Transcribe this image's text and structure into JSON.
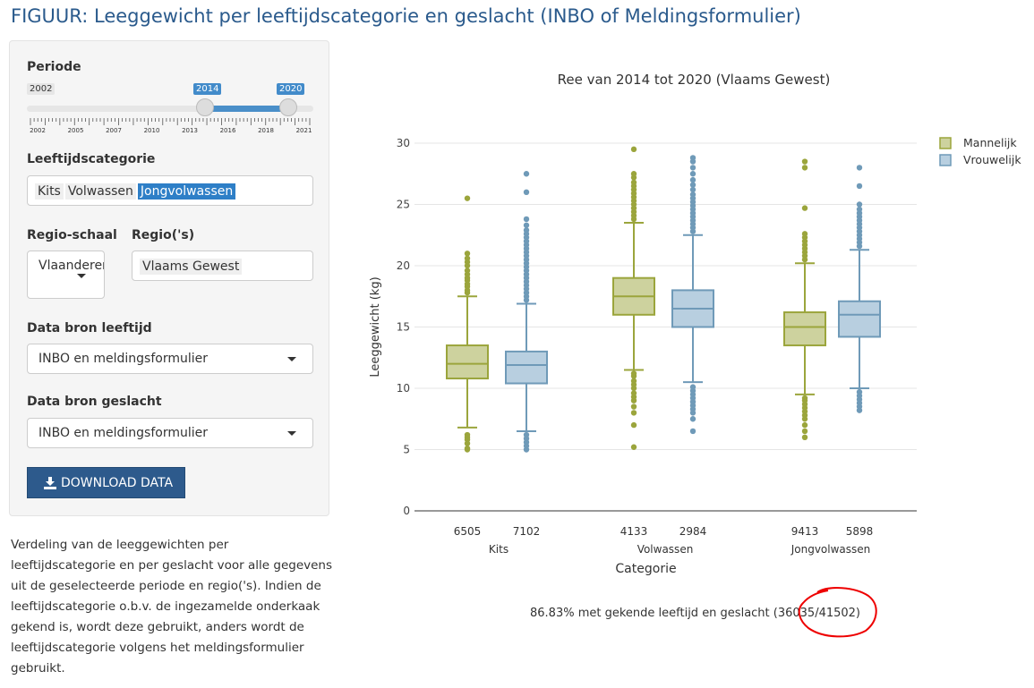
{
  "page": {
    "title": "FIGUUR: Leeggewicht per leeftijdscategorie en geslacht (INBO of Meldingsformulier)"
  },
  "sidebar": {
    "periode": {
      "label": "Periode",
      "min_label": "2002",
      "from": "2014",
      "to": "2020",
      "ticks": [
        "2002",
        "2005",
        "2007",
        "2010",
        "2013",
        "2016",
        "2018",
        "2021"
      ]
    },
    "leeftijd": {
      "label": "Leeftijdscategorie",
      "tags": [
        "Kits",
        "Volwassen",
        "Jongvolwassen"
      ],
      "selected": "Jongvolwassen"
    },
    "regio_schaal": {
      "label": "Regio-schaal",
      "value": "Vlaanderen"
    },
    "regios": {
      "label": "Regio('s)",
      "value": "Vlaams Gewest"
    },
    "bron_leeftijd": {
      "label": "Data bron leeftijd",
      "value": "INBO en meldingsformulier"
    },
    "bron_geslacht": {
      "label": "Data bron geslacht",
      "value": "INBO en meldingsformulier"
    },
    "download_label": "DOWNLOAD DATA"
  },
  "description": "Verdeling van de leeggewichten per leeftijdscategorie en per geslacht voor alle gegevens uit de geselecteerde periode en regio('s). Indien de leeftijdscategorie o.b.v. de ingezamelde onderkaak gekend is, wordt deze gebruikt, anders wordt de leeftijdscategorie volgens het meldingsformulier gebruikt.",
  "footnote": "86.83% met gekende leeftijd en geslacht (36035/41502)",
  "colors": {
    "male": "#9ba53c",
    "male_fill": "#cdd29e",
    "female": "#6f9ab8",
    "female_fill": "#b8cfe0",
    "accent": "#2a5a8c"
  },
  "chart_data": {
    "type": "box",
    "title": "Ree van 2014 tot 2020 (Vlaams Gewest)",
    "xlabel": "Categorie",
    "ylabel": "Leeggewicht (kg)",
    "ylim": [
      0,
      30
    ],
    "yticks": [
      0,
      5,
      10,
      15,
      20,
      25,
      30
    ],
    "categories": [
      "Kits",
      "Volwassen",
      "Jongvolwassen"
    ],
    "legend": {
      "position": "top-right"
    },
    "series": [
      {
        "name": "Mannelijk",
        "counts": [
          "6505",
          "4133",
          "9413"
        ],
        "boxes": [
          {
            "lo": 6.8,
            "q1": 10.8,
            "median": 12.0,
            "q3": 13.5,
            "hi": 17.5
          },
          {
            "lo": 11.5,
            "q1": 16.0,
            "median": 17.5,
            "q3": 19.0,
            "hi": 23.5
          },
          {
            "lo": 9.5,
            "q1": 13.5,
            "median": 15.0,
            "q3": 16.2,
            "hi": 20.2
          }
        ],
        "outliers": [
          [
            5.0,
            5.1,
            5.5,
            5.8,
            6.0,
            6.2,
            17.8,
            18.0,
            18.3,
            18.5,
            18.8,
            19.0,
            19.3,
            19.6,
            20.0,
            20.3,
            20.6,
            21.0,
            25.5
          ],
          [
            5.2,
            7.0,
            8.0,
            8.5,
            9.0,
            9.3,
            9.6,
            10.0,
            10.3,
            10.6,
            11.0,
            11.2,
            23.8,
            24.1,
            24.4,
            24.7,
            25.0,
            25.3,
            25.6,
            25.9,
            26.2,
            26.5,
            26.8,
            27.2,
            27.5,
            29.5
          ],
          [
            6.0,
            6.5,
            7.0,
            7.5,
            7.8,
            8.1,
            8.4,
            8.7,
            9.0,
            9.2,
            20.5,
            20.8,
            21.1,
            21.4,
            21.7,
            22.0,
            22.3,
            22.6,
            24.7,
            28.0,
            28.5
          ]
        ]
      },
      {
        "name": "Vrouwelijk",
        "counts": [
          "7102",
          "2984",
          "5898"
        ],
        "boxes": [
          {
            "lo": 6.5,
            "q1": 10.4,
            "median": 11.9,
            "q3": 13.0,
            "hi": 16.9
          },
          {
            "lo": 10.5,
            "q1": 15.0,
            "median": 16.5,
            "q3": 18.0,
            "hi": 22.5
          },
          {
            "lo": 10.0,
            "q1": 14.2,
            "median": 16.0,
            "q3": 17.1,
            "hi": 21.3
          }
        ],
        "outliers": [
          [
            5.0,
            5.3,
            5.6,
            5.9,
            6.2,
            17.2,
            17.5,
            17.8,
            18.1,
            18.4,
            18.7,
            19.0,
            19.3,
            19.6,
            19.9,
            20.2,
            20.5,
            20.8,
            21.1,
            21.4,
            21.7,
            22.0,
            22.3,
            22.6,
            22.9,
            23.3,
            23.8,
            26.0,
            27.5
          ],
          [
            6.5,
            7.5,
            8.0,
            8.3,
            8.6,
            8.9,
            9.2,
            9.5,
            9.8,
            10.1,
            22.8,
            23.1,
            23.4,
            23.7,
            24.0,
            24.3,
            24.6,
            24.9,
            25.2,
            25.5,
            25.8,
            26.2,
            26.6,
            27.0,
            27.5,
            28.0,
            28.5,
            28.8
          ],
          [
            8.2,
            8.5,
            8.8,
            9.1,
            9.4,
            9.7,
            21.6,
            21.9,
            22.2,
            22.5,
            22.8,
            23.1,
            23.4,
            23.7,
            24.0,
            24.3,
            24.6,
            25.0,
            26.5,
            28.0
          ]
        ]
      }
    ]
  }
}
